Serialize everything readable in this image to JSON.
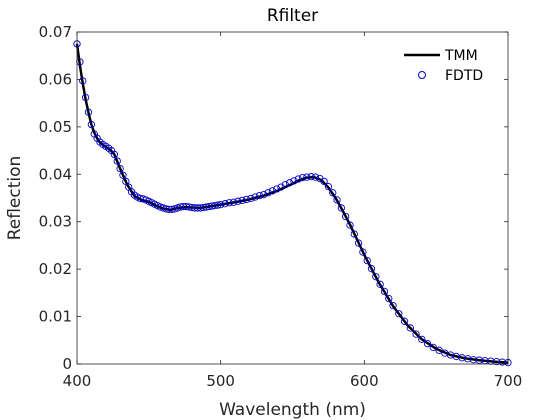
{
  "chart_data": {
    "type": "line",
    "title": "Rfilter",
    "xlabel": "Wavelength (nm)",
    "ylabel": "Reflection",
    "xlim": [
      400,
      700
    ],
    "ylim": [
      0,
      0.07
    ],
    "x_ticks": [
      400,
      500,
      600,
      700
    ],
    "x_tick_labels": [
      "400",
      "500",
      "600",
      "700"
    ],
    "y_ticks": [
      0,
      0.01,
      0.02,
      0.03,
      0.04,
      0.05,
      0.06,
      0.07
    ],
    "y_tick_labels": [
      "0",
      "0.01",
      "0.02",
      "0.03",
      "0.04",
      "0.05",
      "0.06",
      "0.07"
    ],
    "grid": false,
    "legend_position": "top-right",
    "colors": {
      "TMM": "#000000",
      "FDTD": "#0000cc"
    },
    "series": [
      {
        "name": "TMM",
        "style": "line",
        "x": [
          400,
          402,
          404,
          406,
          408,
          410,
          412,
          415,
          418,
          420,
          423,
          426,
          430,
          435,
          440,
          445,
          450,
          455,
          460,
          465,
          470,
          475,
          480,
          485,
          490,
          500,
          510,
          520,
          530,
          540,
          550,
          555,
          560,
          565,
          570,
          575,
          580,
          585,
          590,
          595,
          600,
          610,
          620,
          630,
          640,
          650,
          660,
          670,
          680,
          690,
          700
        ],
        "y": [
          0.0675,
          0.063,
          0.0592,
          0.0558,
          0.053,
          0.0505,
          0.0488,
          0.047,
          0.0462,
          0.0458,
          0.0452,
          0.0442,
          0.0412,
          0.0378,
          0.0354,
          0.0346,
          0.0342,
          0.0334,
          0.0328,
          0.0325,
          0.0329,
          0.0331,
          0.033,
          0.0329,
          0.0331,
          0.0336,
          0.0341,
          0.0347,
          0.0355,
          0.0366,
          0.038,
          0.0388,
          0.0393,
          0.0394,
          0.0388,
          0.0372,
          0.035,
          0.0323,
          0.0294,
          0.0262,
          0.023,
          0.0172,
          0.0122,
          0.0082,
          0.0052,
          0.0032,
          0.0019,
          0.0012,
          0.0008,
          0.0005,
          0.0003
        ]
      },
      {
        "name": "FDTD",
        "style": "markers",
        "marker": "circle",
        "x": [
          400,
          402,
          404,
          406,
          408,
          410,
          412,
          414,
          416,
          418,
          420,
          422,
          424,
          426,
          428,
          430,
          432,
          434,
          436,
          438,
          440,
          442,
          444,
          446,
          448,
          450,
          452,
          454,
          456,
          458,
          460,
          462,
          464,
          466,
          468,
          470,
          472,
          474,
          476,
          478,
          480,
          482,
          484,
          486,
          488,
          490,
          492,
          494,
          496,
          498,
          500,
          503,
          506,
          509,
          512,
          515,
          518,
          521,
          524,
          527,
          530,
          533,
          536,
          539,
          542,
          545,
          548,
          551,
          554,
          557,
          560,
          563,
          566,
          569,
          572,
          575,
          578,
          581,
          584,
          587,
          590,
          593,
          596,
          599,
          602,
          605,
          608,
          611,
          614,
          617,
          620,
          624,
          628,
          632,
          636,
          640,
          644,
          648,
          652,
          656,
          660,
          664,
          668,
          672,
          676,
          680,
          684,
          688,
          692,
          696,
          700
        ],
        "y": [
          0.0675,
          0.0637,
          0.0597,
          0.0562,
          0.0531,
          0.0505,
          0.0485,
          0.0476,
          0.0468,
          0.0463,
          0.0459,
          0.0455,
          0.045,
          0.0442,
          0.0428,
          0.0412,
          0.0398,
          0.0385,
          0.0373,
          0.0363,
          0.0356,
          0.0352,
          0.0349,
          0.0348,
          0.0346,
          0.0343,
          0.034,
          0.0337,
          0.0334,
          0.0331,
          0.0329,
          0.0327,
          0.0326,
          0.0326,
          0.0327,
          0.0329,
          0.0331,
          0.0332,
          0.0332,
          0.0331,
          0.033,
          0.0329,
          0.0329,
          0.0329,
          0.033,
          0.0331,
          0.0332,
          0.0333,
          0.0334,
          0.0335,
          0.0336,
          0.0338,
          0.034,
          0.0341,
          0.0343,
          0.0345,
          0.0347,
          0.0349,
          0.0352,
          0.0355,
          0.0357,
          0.0361,
          0.0365,
          0.0369,
          0.0373,
          0.0378,
          0.0382,
          0.0386,
          0.039,
          0.0393,
          0.0394,
          0.0395,
          0.0394,
          0.0391,
          0.0385,
          0.0374,
          0.0361,
          0.0346,
          0.0329,
          0.0311,
          0.0293,
          0.0274,
          0.0255,
          0.0236,
          0.0218,
          0.0201,
          0.0184,
          0.0168,
          0.0153,
          0.0138,
          0.0123,
          0.0106,
          0.009,
          0.0076,
          0.0063,
          0.0052,
          0.0043,
          0.0035,
          0.0029,
          0.0023,
          0.0019,
          0.0016,
          0.0013,
          0.0011,
          0.0009,
          0.0008,
          0.0007,
          0.0006,
          0.0005,
          0.0004,
          0.0003
        ]
      }
    ]
  }
}
